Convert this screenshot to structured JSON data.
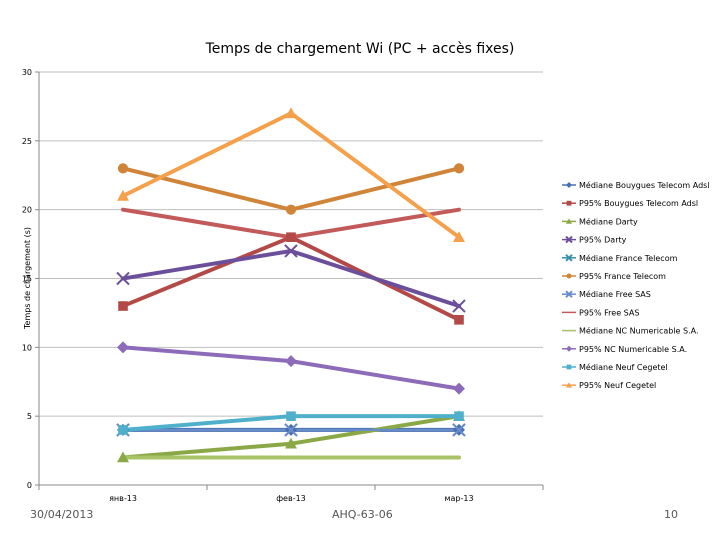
{
  "footer": {
    "date": "30/04/2013",
    "reference": "AHQ-63-06",
    "page": "10"
  },
  "chart_data": {
    "type": "line",
    "title": "Temps de chargement Wi (PC + accès fixes)",
    "xlabel": "",
    "ylabel": "Temps de chargement (s)",
    "categories": [
      "янв-13",
      "фев-13",
      "мар-13"
    ],
    "ylim": [
      0,
      30
    ],
    "yticks": [
      0,
      5,
      10,
      15,
      20,
      25,
      30
    ],
    "grid": true,
    "legend": "right",
    "series": [
      {
        "name": "Médiane Bouygues Telecom Adsl",
        "values": [
          4,
          4,
          4
        ],
        "color": "#4a6fb0",
        "marker": "diamond",
        "width": 4
      },
      {
        "name": "P95% Bouygues Telecom Adsl",
        "values": [
          13,
          18,
          12
        ],
        "color": "#b34a47",
        "marker": "square",
        "width": 4
      },
      {
        "name": "Médiane Darty",
        "values": [
          2,
          3,
          5
        ],
        "color": "#8aa845",
        "marker": "triangle",
        "width": 4
      },
      {
        "name": "P95% Darty",
        "values": [
          15,
          17,
          13
        ],
        "color": "#6b4f9a",
        "marker": "x",
        "width": 4
      },
      {
        "name": "Médiane France Telecom",
        "values": [
          4,
          4,
          4
        ],
        "color": "#3a8fb0",
        "marker": "x",
        "width": 2
      },
      {
        "name": "P95% France Telecom",
        "values": [
          23,
          20,
          23
        ],
        "color": "#d0843a",
        "marker": "circle",
        "width": 4
      },
      {
        "name": "Médiane Free SAS",
        "values": [
          4,
          4,
          4
        ],
        "color": "#6b8ccc",
        "marker": "x",
        "width": 2
      },
      {
        "name": "P95% Free SAS",
        "values": [
          20,
          18,
          20
        ],
        "color": "#c25a5a",
        "marker": "none",
        "width": 4
      },
      {
        "name": "Médiane NC Numericable S.A.",
        "values": [
          2,
          2,
          2
        ],
        "color": "#a8c466",
        "marker": "none",
        "width": 4
      },
      {
        "name": "P95% NC Numericable S.A.",
        "values": [
          10,
          9,
          7
        ],
        "color": "#8c6bb8",
        "marker": "diamond",
        "width": 4
      },
      {
        "name": "Médiane Neuf Cegetel",
        "values": [
          4,
          5,
          5
        ],
        "color": "#4fb0cc",
        "marker": "square",
        "width": 4
      },
      {
        "name": "P95% Neuf Cegetel",
        "values": [
          21,
          27,
          18
        ],
        "color": "#f5a04a",
        "marker": "triangle",
        "width": 4
      }
    ]
  }
}
